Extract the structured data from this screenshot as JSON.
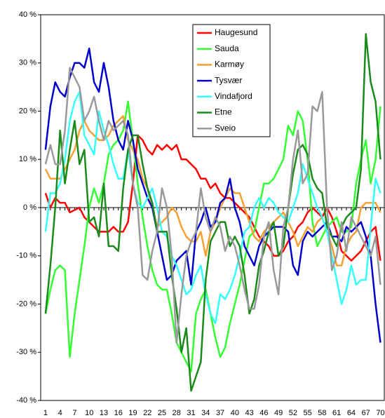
{
  "chart_data": {
    "type": "line",
    "x": [
      1,
      2,
      3,
      4,
      5,
      6,
      7,
      8,
      9,
      10,
      11,
      12,
      13,
      14,
      15,
      16,
      17,
      18,
      19,
      20,
      21,
      22,
      23,
      24,
      25,
      26,
      27,
      28,
      29,
      30,
      31,
      32,
      33,
      34,
      35,
      36,
      37,
      38,
      39,
      40,
      41,
      42,
      43,
      44,
      45,
      46,
      47,
      48,
      49,
      50,
      51,
      52,
      53,
      54,
      55,
      56,
      57,
      58,
      59,
      60,
      61,
      62,
      63,
      64,
      65,
      66,
      67,
      68,
      69,
      70
    ],
    "xlim": [
      0,
      70.8
    ],
    "xticks": [
      1,
      4,
      7,
      10,
      13,
      16,
      19,
      22,
      25,
      28,
      31,
      34,
      37,
      40,
      43,
      46,
      49,
      52,
      55,
      58,
      61,
      64,
      67,
      70
    ],
    "ylim": [
      -40,
      40
    ],
    "yticks": [
      {
        "value": 40,
        "label": "40 %"
      },
      {
        "value": 30,
        "label": "30 %"
      },
      {
        "value": 20,
        "label": "20 %"
      },
      {
        "value": 10,
        "label": "10 %"
      },
      {
        "value": 0,
        "label": "0 %"
      },
      {
        "value": -10,
        "label": "-10 %"
      },
      {
        "value": -20,
        "label": "-20 %"
      },
      {
        "value": -30,
        "label": "-30 %"
      },
      {
        "value": -40,
        "label": "-40 %"
      }
    ],
    "grid": false,
    "legend": "top",
    "series": [
      {
        "name": "Haugesund",
        "color": "#ff0000",
        "values": [
          3,
          0,
          2,
          1,
          1,
          -1,
          -0.5,
          0,
          -2,
          -3,
          -4,
          -5,
          -5,
          -5,
          -4,
          -5,
          -5,
          -3,
          5,
          15,
          14,
          12,
          11,
          13,
          12,
          13,
          12,
          13,
          10,
          10,
          9,
          8,
          6,
          6,
          4,
          5,
          3,
          2,
          2,
          1,
          0,
          -1,
          -2,
          -4,
          -6,
          -7,
          -8,
          -10,
          -10,
          -9,
          -7,
          -6,
          -4,
          -3,
          -1,
          0,
          -1,
          -2,
          0,
          -2,
          -5,
          -9,
          -10,
          -11,
          -10,
          -9,
          -7,
          -5,
          -4,
          -11
        ]
      },
      {
        "name": "Sauda",
        "color": "#33ff33",
        "values": [
          -22,
          -17,
          -13,
          -12,
          -13,
          -31,
          -22,
          -15,
          -8,
          0,
          4,
          1,
          5,
          11,
          13,
          14,
          16,
          22,
          14,
          5,
          -2,
          -8,
          -13,
          -16,
          -17,
          -17,
          -22,
          -28,
          -30,
          -32,
          -34,
          -22,
          -19,
          -17,
          -22,
          -27,
          -31,
          -29,
          -24,
          -20,
          -16,
          -11,
          -6,
          -5,
          0,
          5,
          5,
          6,
          8,
          10,
          17,
          15,
          20,
          18,
          10,
          -3,
          -8,
          -6,
          -4,
          -3,
          -2,
          -5,
          -5,
          -4,
          5,
          10,
          14,
          5,
          10,
          21
        ]
      },
      {
        "name": "Karmøy",
        "color": "#f5a030",
        "values": [
          8,
          6,
          6,
          6,
          8,
          10,
          12,
          16,
          18,
          16,
          15,
          14,
          14,
          15,
          17,
          18,
          19,
          14,
          12,
          10,
          6,
          4,
          0,
          -4,
          -3,
          -2,
          0,
          -1,
          -4,
          -6,
          -7,
          -7,
          -5,
          -10,
          -5,
          -3,
          0,
          2,
          4,
          3,
          3,
          0,
          -3,
          -6,
          -7,
          -5,
          -4,
          -3,
          -2,
          -1,
          -3,
          -5,
          -8,
          -6,
          -4,
          -5,
          -3,
          -2,
          -5,
          -8,
          -12,
          -12,
          -8,
          -6,
          -5,
          0,
          1,
          1,
          1,
          -1
        ]
      },
      {
        "name": "Tysvær",
        "color": "#0000cc",
        "values": [
          12,
          21,
          26,
          24,
          23,
          27,
          30,
          30,
          29,
          33,
          26,
          24,
          30,
          25,
          18,
          14,
          12,
          18,
          14,
          8,
          5,
          2,
          0,
          -5,
          -10,
          -15,
          -14,
          -11,
          -10,
          -9,
          -16,
          -5,
          -3,
          0,
          -4,
          -3,
          1,
          2,
          6,
          0,
          -3,
          -8,
          -10,
          -12,
          -8,
          -6,
          -5,
          -4,
          -4,
          -4,
          -5,
          -12,
          -14,
          -7,
          -5,
          -6,
          -5,
          -4,
          -3,
          -6,
          -6,
          -7,
          -4,
          -5,
          -4,
          -3,
          -6,
          -10,
          -20,
          -28
        ]
      },
      {
        "name": "Vindafjord",
        "color": "#33ffff",
        "values": [
          -5,
          3,
          3,
          5,
          10,
          18,
          22,
          24,
          15,
          13,
          11,
          20,
          16,
          13,
          9,
          6,
          6,
          12,
          5,
          1,
          0,
          2,
          4,
          0,
          -5,
          -6,
          -10,
          -12,
          -15,
          -18,
          -17,
          -14,
          -12,
          -18,
          -22,
          -24,
          -18,
          -19,
          -17,
          -14,
          -10,
          -5,
          -4,
          0,
          2,
          0,
          2,
          1,
          -1,
          -2,
          -3,
          0,
          3,
          9,
          6,
          3,
          0,
          -2,
          -5,
          -10,
          -15,
          -20,
          -17,
          -12,
          -16,
          -15,
          -15,
          -4,
          6,
          3
        ]
      },
      {
        "name": "Etne",
        "color": "#1a8a1a",
        "values": [
          -22,
          -12,
          0,
          16,
          5,
          12,
          18,
          9,
          12,
          -3,
          -2,
          -6,
          5,
          -8,
          -8,
          -9,
          4,
          12,
          15,
          15,
          9,
          4,
          1,
          -5,
          -5,
          -5,
          -14,
          -21,
          -30,
          -25,
          -38,
          -35,
          -32,
          -15,
          -7,
          -5,
          -3,
          -3,
          -8,
          -6,
          -8,
          -14,
          -22,
          -19,
          -12,
          -9,
          -5,
          -3,
          -10,
          -8,
          0,
          7,
          12,
          13,
          11,
          6,
          4,
          3,
          -4,
          -6,
          -8,
          -4,
          -2,
          -1,
          0,
          8,
          36,
          26,
          22,
          10
        ]
      },
      {
        "name": "Sveio",
        "color": "#999999",
        "values": [
          9,
          13,
          9,
          9,
          16,
          29,
          27,
          25,
          18,
          20,
          23,
          18,
          14,
          18,
          16,
          17,
          18,
          15,
          5,
          0,
          -14,
          -15,
          -9,
          -5,
          4,
          0,
          -10,
          -28,
          -18,
          -10,
          -7,
          -5,
          4,
          -2,
          -5,
          -2,
          -4,
          -9,
          -6,
          -8,
          -12,
          -17,
          -21,
          -21,
          -16,
          -6,
          -3,
          -13,
          -18,
          -4,
          0,
          10,
          16,
          5,
          7,
          21,
          20,
          24,
          0,
          -13,
          -10,
          -3,
          -9,
          -2,
          -4,
          -6,
          -8,
          -10,
          -6,
          -16
        ]
      }
    ]
  }
}
